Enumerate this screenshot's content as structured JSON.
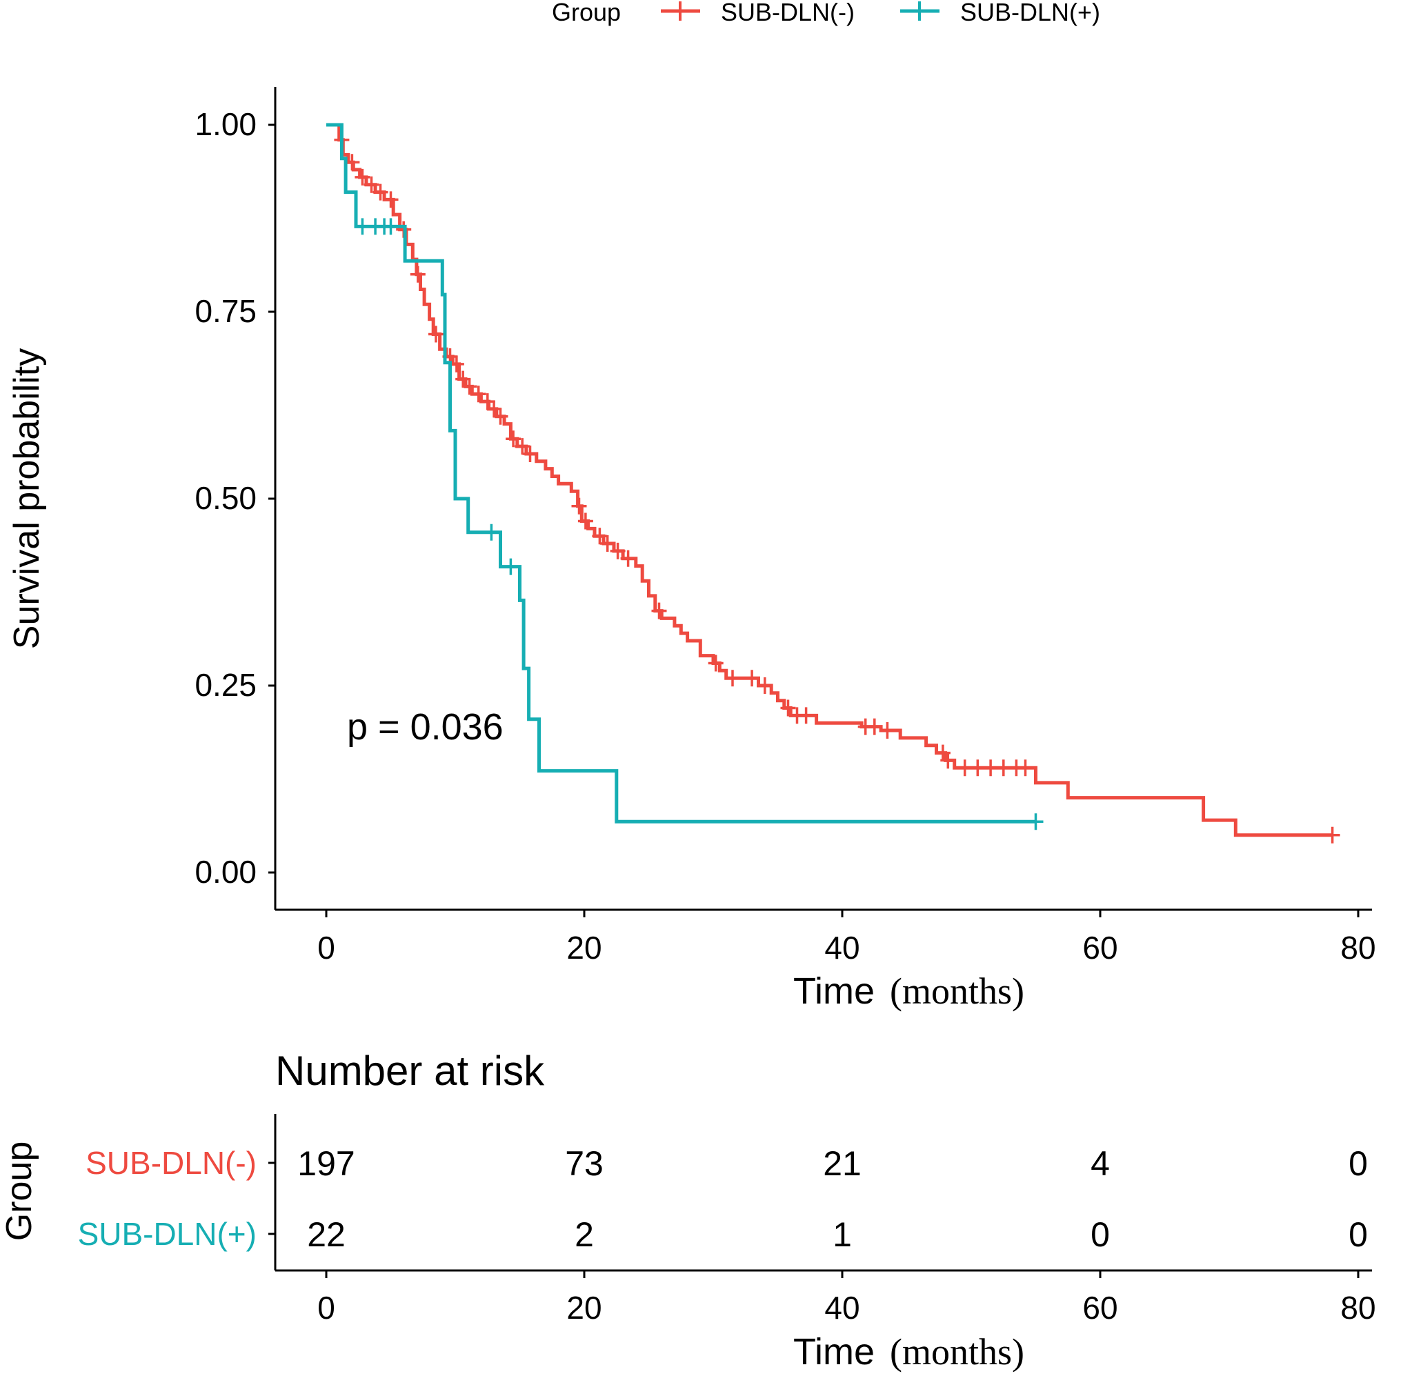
{
  "colors": {
    "neg": "#EE4A40",
    "pos": "#16AEB3",
    "axis": "#000000",
    "text": "#000000"
  },
  "legend": {
    "title": "Group",
    "entries": [
      "SUB-DLN(-)",
      "SUB-DLN(+)"
    ]
  },
  "chart_data": {
    "type": "line",
    "subtype": "kaplan-meier",
    "ylabel": "Survival probability",
    "xlabel_main": "Time",
    "xlabel_unit": "(months)",
    "xlim": [
      0,
      80
    ],
    "ylim": [
      0,
      1
    ],
    "x_ticks": [
      "0",
      "20",
      "40",
      "60",
      "80"
    ],
    "y_ticks": [
      "0.00",
      "0.25",
      "0.50",
      "0.75",
      "1.00"
    ],
    "annotation": "p = 0.036",
    "series": [
      {
        "name": "SUB-DLN(-)",
        "color": "#EE4A40",
        "steps": [
          [
            0,
            1.0
          ],
          [
            1.0,
            0.98
          ],
          [
            1.3,
            0.96
          ],
          [
            1.7,
            0.95
          ],
          [
            2.1,
            0.94
          ],
          [
            2.6,
            0.93
          ],
          [
            3.1,
            0.92
          ],
          [
            3.8,
            0.91
          ],
          [
            4.5,
            0.9
          ],
          [
            5.2,
            0.88
          ],
          [
            5.7,
            0.86
          ],
          [
            6.2,
            0.84
          ],
          [
            6.7,
            0.82
          ],
          [
            7.0,
            0.8
          ],
          [
            7.3,
            0.78
          ],
          [
            7.6,
            0.76
          ],
          [
            8.0,
            0.74
          ],
          [
            8.3,
            0.72
          ],
          [
            8.8,
            0.7
          ],
          [
            9.3,
            0.69
          ],
          [
            9.8,
            0.68
          ],
          [
            10.3,
            0.66
          ],
          [
            10.8,
            0.65
          ],
          [
            11.3,
            0.64
          ],
          [
            12.0,
            0.63
          ],
          [
            12.6,
            0.62
          ],
          [
            13.2,
            0.61
          ],
          [
            13.8,
            0.6
          ],
          [
            14.3,
            0.58
          ],
          [
            14.8,
            0.57
          ],
          [
            15.5,
            0.56
          ],
          [
            16.3,
            0.55
          ],
          [
            17.0,
            0.54
          ],
          [
            17.5,
            0.53
          ],
          [
            18.0,
            0.52
          ],
          [
            19.0,
            0.51
          ],
          [
            19.5,
            0.49
          ],
          [
            19.8,
            0.47
          ],
          [
            20.3,
            0.46
          ],
          [
            20.8,
            0.45
          ],
          [
            21.5,
            0.44
          ],
          [
            22.3,
            0.43
          ],
          [
            23.0,
            0.42
          ],
          [
            24.0,
            0.41
          ],
          [
            24.5,
            0.39
          ],
          [
            25.0,
            0.37
          ],
          [
            25.5,
            0.35
          ],
          [
            26.0,
            0.34
          ],
          [
            27.0,
            0.33
          ],
          [
            27.5,
            0.32
          ],
          [
            28.0,
            0.31
          ],
          [
            29.0,
            0.29
          ],
          [
            30.0,
            0.28
          ],
          [
            30.5,
            0.27
          ],
          [
            31.0,
            0.26
          ],
          [
            33.5,
            0.25
          ],
          [
            34.5,
            0.24
          ],
          [
            35.0,
            0.23
          ],
          [
            35.5,
            0.22
          ],
          [
            36.0,
            0.21
          ],
          [
            38.0,
            0.2
          ],
          [
            41.5,
            0.195
          ],
          [
            43.0,
            0.19
          ],
          [
            44.5,
            0.18
          ],
          [
            46.5,
            0.17
          ],
          [
            47.3,
            0.16
          ],
          [
            48.0,
            0.15
          ],
          [
            48.7,
            0.14
          ],
          [
            55.0,
            0.12
          ],
          [
            57.5,
            0.1
          ],
          [
            68.0,
            0.07
          ],
          [
            70.5,
            0.05
          ],
          [
            78.0,
            0.05
          ]
        ],
        "censor_x": [
          1.2,
          2.0,
          2.8,
          3.5,
          4.2,
          5.0,
          6.0,
          7.1,
          8.5,
          9.6,
          10.1,
          10.6,
          11.1,
          11.8,
          12.5,
          13.0,
          13.5,
          14.5,
          15.2,
          15.8,
          19.6,
          20.1,
          21.2,
          21.8,
          22.6,
          23.4,
          25.8,
          30.2,
          31.5,
          33.0,
          34.0,
          35.8,
          36.5,
          37.2,
          41.8,
          42.5,
          43.5,
          47.8,
          48.2,
          49.5,
          50.5,
          51.5,
          52.5,
          53.5,
          54.2,
          78.0
        ]
      },
      {
        "name": "SUB-DLN(+)",
        "color": "#16AEB3",
        "steps": [
          [
            0,
            1.0
          ],
          [
            1.2,
            0.955
          ],
          [
            1.5,
            0.91
          ],
          [
            2.3,
            0.864
          ],
          [
            6.0,
            0.864
          ],
          [
            6.1,
            0.818
          ],
          [
            8.5,
            0.818
          ],
          [
            9.0,
            0.773
          ],
          [
            9.2,
            0.682
          ],
          [
            9.6,
            0.591
          ],
          [
            10.0,
            0.5
          ],
          [
            11.0,
            0.455
          ],
          [
            13.5,
            0.409
          ],
          [
            15.0,
            0.364
          ],
          [
            15.3,
            0.273
          ],
          [
            15.7,
            0.205
          ],
          [
            16.5,
            0.136
          ],
          [
            22.5,
            0.068
          ],
          [
            55.0,
            0.068
          ]
        ],
        "censor_x": [
          2.8,
          3.8,
          4.5,
          5.0,
          12.8,
          14.3,
          55.0
        ]
      }
    ]
  },
  "risk_table": {
    "title": "Number at risk",
    "y_title": "Group",
    "xlabel_main": "Time",
    "xlabel_unit": "(months)",
    "x_ticks": [
      "0",
      "20",
      "40",
      "60",
      "80"
    ],
    "rows": [
      {
        "name": "SUB-DLN(-)",
        "counts": [
          "197",
          "73",
          "21",
          "4",
          "0"
        ]
      },
      {
        "name": "SUB-DLN(+)",
        "counts": [
          "22",
          "2",
          "1",
          "0",
          "0"
        ]
      }
    ]
  }
}
